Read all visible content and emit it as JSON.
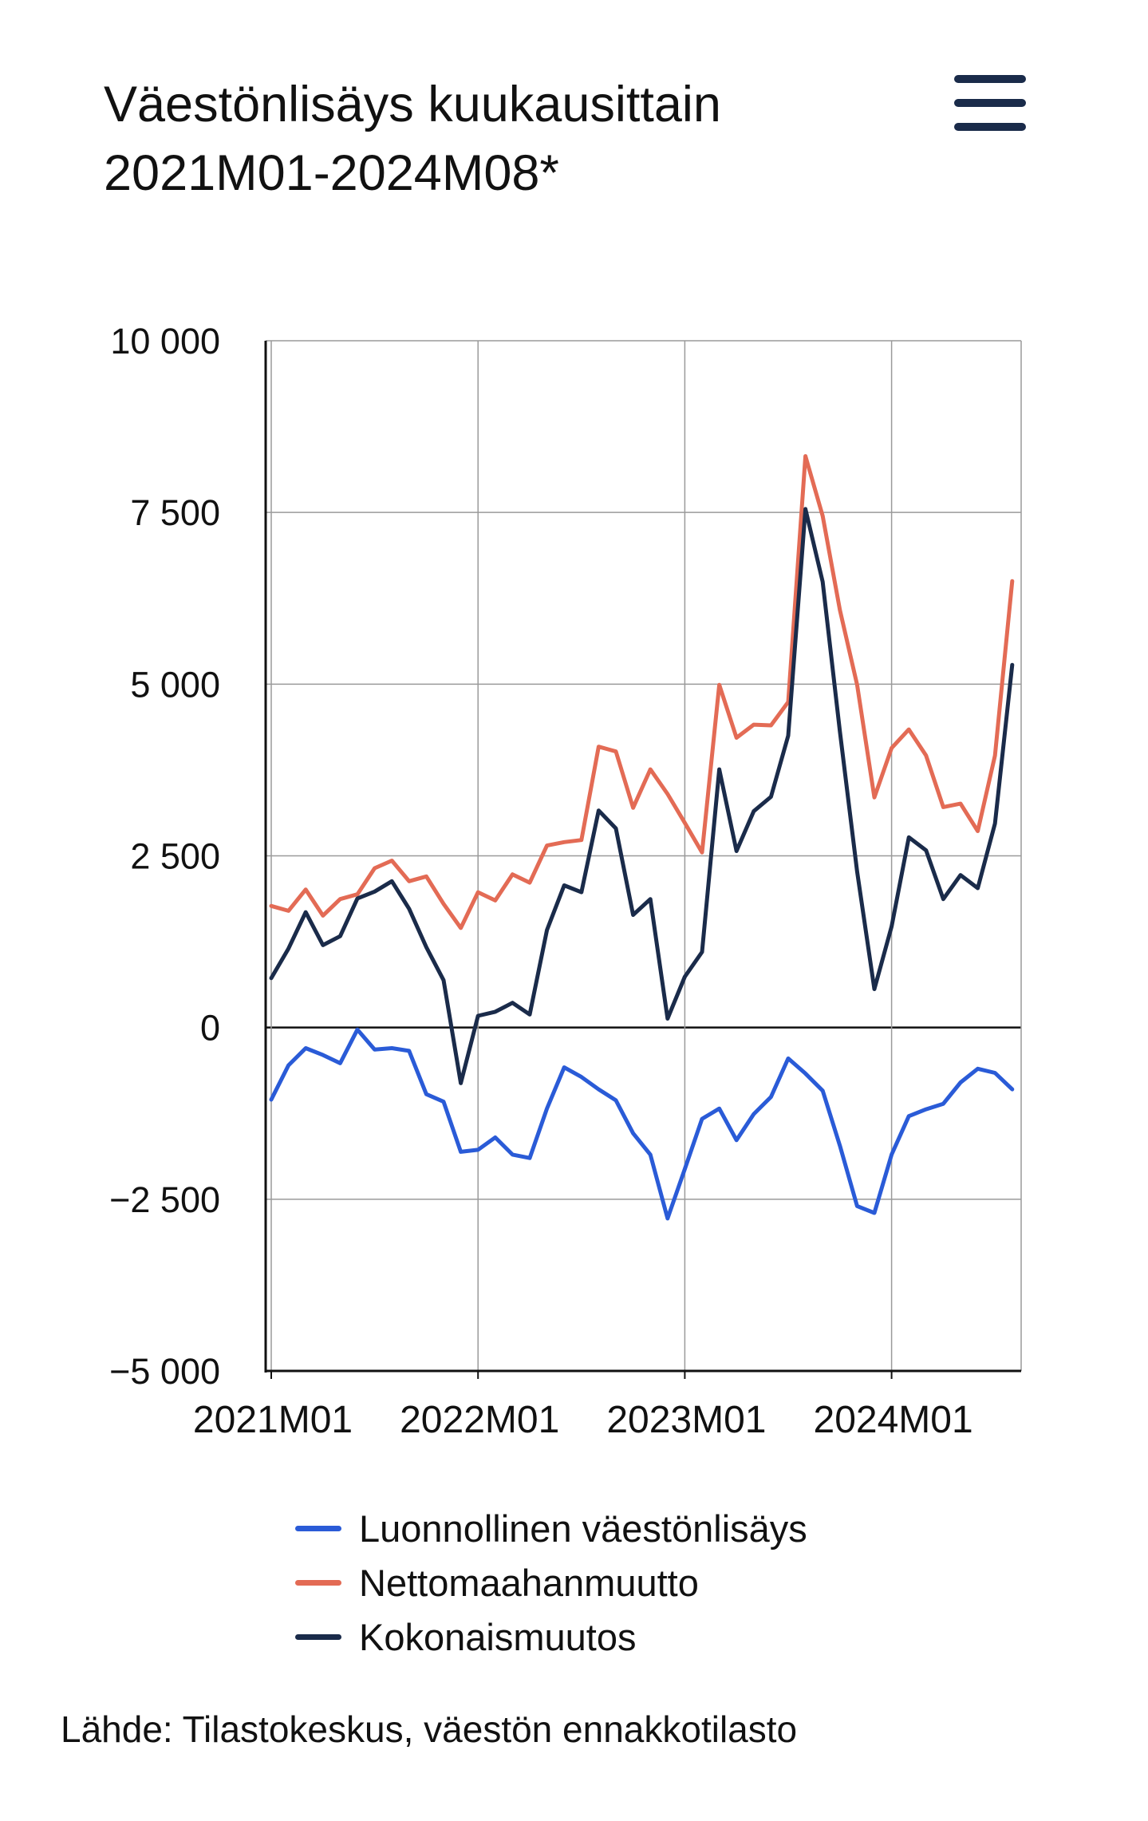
{
  "header": {
    "title_line1": "Väestönlisäys kuukausittain",
    "title_line2": "2021M01-2024M08*",
    "menu_icon": "hamburger-menu-icon"
  },
  "colors": {
    "natural": "#2a5bd7",
    "migration": "#e36b55",
    "total": "#1a2b4a",
    "grid": "#9a9a9a",
    "axis": "#111111"
  },
  "chart_data": {
    "type": "line",
    "title": "Väestönlisäys kuukausittain 2021M01-2024M08*",
    "xlabel": "",
    "ylabel": "",
    "ylim": [
      -5000,
      10000
    ],
    "grid": true,
    "legend_position": "bottom",
    "y_ticks": [
      10000,
      7500,
      5000,
      2500,
      0,
      -2500,
      -5000
    ],
    "y_tick_labels": [
      "10 000",
      "7 500",
      "5 000",
      "2 500",
      "0",
      "−2 500",
      "−5 000"
    ],
    "x_tick_labels": [
      "2021M01",
      "2022M01",
      "2023M01",
      "2024M01"
    ],
    "x": [
      "2021M01",
      "2021M02",
      "2021M03",
      "2021M04",
      "2021M05",
      "2021M06",
      "2021M07",
      "2021M08",
      "2021M09",
      "2021M10",
      "2021M11",
      "2021M12",
      "2022M01",
      "2022M02",
      "2022M03",
      "2022M04",
      "2022M05",
      "2022M06",
      "2022M07",
      "2022M08",
      "2022M09",
      "2022M10",
      "2022M11",
      "2022M12",
      "2023M01",
      "2023M02",
      "2023M03",
      "2023M04",
      "2023M05",
      "2023M06",
      "2023M07",
      "2023M08",
      "2023M09",
      "2023M10",
      "2023M11",
      "2023M12",
      "2024M01",
      "2024M02",
      "2024M03",
      "2024M04",
      "2024M05",
      "2024M06",
      "2024M07",
      "2024M08"
    ],
    "series": [
      {
        "name": "Luonnollinen väestönlisäys",
        "color": "#2a5bd7",
        "values": [
          -1050,
          -550,
          -300,
          -400,
          -520,
          -30,
          -320,
          -300,
          -340,
          -970,
          -1080,
          -1810,
          -1780,
          -1600,
          -1850,
          -1900,
          -1180,
          -580,
          -720,
          -900,
          -1060,
          -1540,
          -1850,
          -2780,
          -2060,
          -1330,
          -1180,
          -1640,
          -1260,
          -1010,
          -450,
          -670,
          -920,
          -1720,
          -2600,
          -2700,
          -1850,
          -1290,
          -1190,
          -1110,
          -800,
          -600,
          -660,
          -900
        ]
      },
      {
        "name": "Nettomaahanmuutto",
        "color": "#e36b55",
        "values": [
          1770,
          1700,
          2010,
          1630,
          1870,
          1940,
          2320,
          2430,
          2130,
          2200,
          1800,
          1450,
          1970,
          1850,
          2230,
          2110,
          2650,
          2700,
          2730,
          4090,
          4020,
          3200,
          3760,
          3400,
          2980,
          2550,
          4990,
          4220,
          4410,
          4400,
          4740,
          8320,
          7450,
          6080,
          4990,
          3350,
          4070,
          4340,
          3960,
          3210,
          3260,
          2860,
          3960,
          6500
        ]
      },
      {
        "name": "Kokonaismuutos",
        "color": "#1a2b4a",
        "values": [
          720,
          1150,
          1680,
          1200,
          1330,
          1880,
          1980,
          2130,
          1730,
          1170,
          690,
          -810,
          170,
          230,
          360,
          190,
          1420,
          2070,
          1970,
          3160,
          2900,
          1640,
          1870,
          130,
          740,
          1100,
          3760,
          2570,
          3150,
          3360,
          4250,
          7550,
          6490,
          4310,
          2270,
          560,
          1470,
          2770,
          2580,
          1870,
          2220,
          2030,
          2970,
          5280
        ]
      }
    ]
  },
  "source": "Lähde: Tilastokeskus, väestön ennakkotilasto"
}
